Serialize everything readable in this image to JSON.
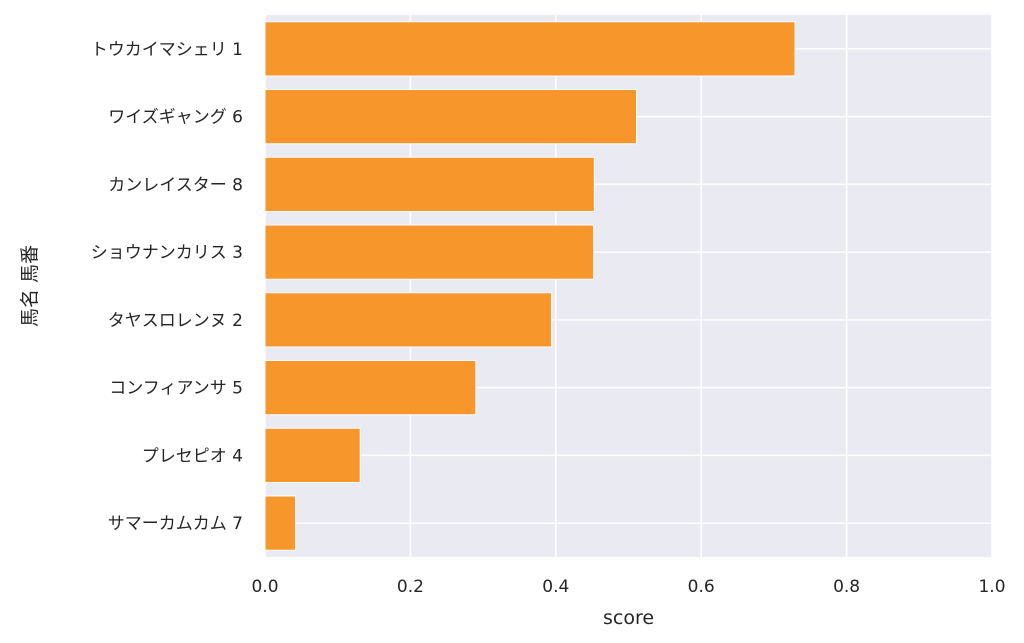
{
  "chart_data": {
    "type": "bar",
    "orientation": "horizontal",
    "categories": [
      "トウカイマシェリ 1",
      "ワイズギャング 6",
      "カンレイスター 8",
      "ショウナンカリス 3",
      "タヤスロレンヌ 2",
      "コンフィアンサ 5",
      "プレセピオ 4",
      "サマーカムカム 7"
    ],
    "values": [
      0.729,
      0.511,
      0.453,
      0.452,
      0.394,
      0.29,
      0.131,
      0.042
    ],
    "xlabel": "score",
    "ylabel": "馬名 馬番",
    "xlim": [
      0.0,
      1.0
    ],
    "xticks": [
      "0.0",
      "0.2",
      "0.4",
      "0.6",
      "0.8",
      "1.0"
    ],
    "grid": true,
    "colors": {
      "bar": "#f7962a",
      "background": "#eaeaf2",
      "grid": "#ffffff"
    }
  }
}
